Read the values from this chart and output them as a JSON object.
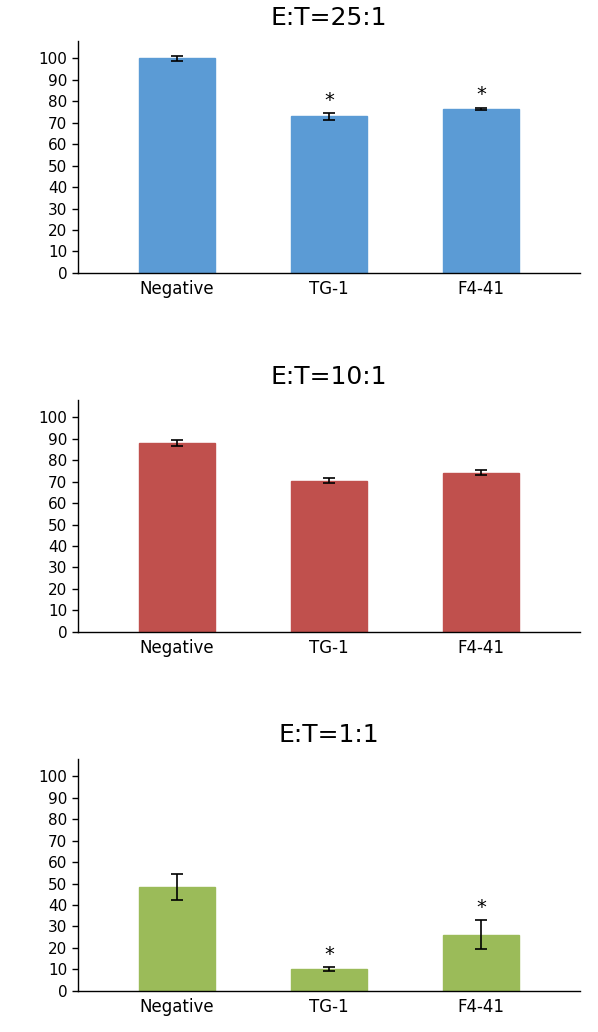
{
  "charts": [
    {
      "title": "E:T=25:1",
      "categories": [
        "Negative",
        "TG-1",
        "F4-41"
      ],
      "values": [
        100.0,
        73.0,
        76.64
      ],
      "errors": [
        1.0,
        1.5,
        0.47
      ],
      "bar_color": "#5B9BD5",
      "significance": [
        false,
        true,
        true
      ],
      "ylim": [
        0,
        108
      ],
      "yticks": [
        0,
        10,
        20,
        30,
        40,
        50,
        60,
        70,
        80,
        90,
        100
      ]
    },
    {
      "title": "E:T=10:1",
      "categories": [
        "Negative",
        "TG-1",
        "F4-41"
      ],
      "values": [
        88.0,
        70.5,
        74.2
      ],
      "errors": [
        1.5,
        1.0,
        1.18
      ],
      "bar_color": "#C0504D",
      "significance": [
        false,
        false,
        false
      ],
      "ylim": [
        0,
        108
      ],
      "yticks": [
        0,
        10,
        20,
        30,
        40,
        50,
        60,
        70,
        80,
        90,
        100
      ]
    },
    {
      "title": "E:T=1:1",
      "categories": [
        "Negative",
        "TG-1",
        "F4-41"
      ],
      "values": [
        48.5,
        10.0,
        26.2
      ],
      "errors": [
        6.0,
        1.0,
        6.8
      ],
      "bar_color": "#9BBB59",
      "significance": [
        false,
        true,
        true
      ],
      "ylim": [
        0,
        108
      ],
      "yticks": [
        0,
        10,
        20,
        30,
        40,
        50,
        60,
        70,
        80,
        90,
        100
      ]
    }
  ],
  "background_color": "#FFFFFF",
  "title_fontsize": 18,
  "tick_fontsize": 11,
  "xlabel_fontsize": 12,
  "star_fontsize": 14,
  "bar_width": 0.5,
  "fig_width": 5.98,
  "fig_height": 10.32
}
